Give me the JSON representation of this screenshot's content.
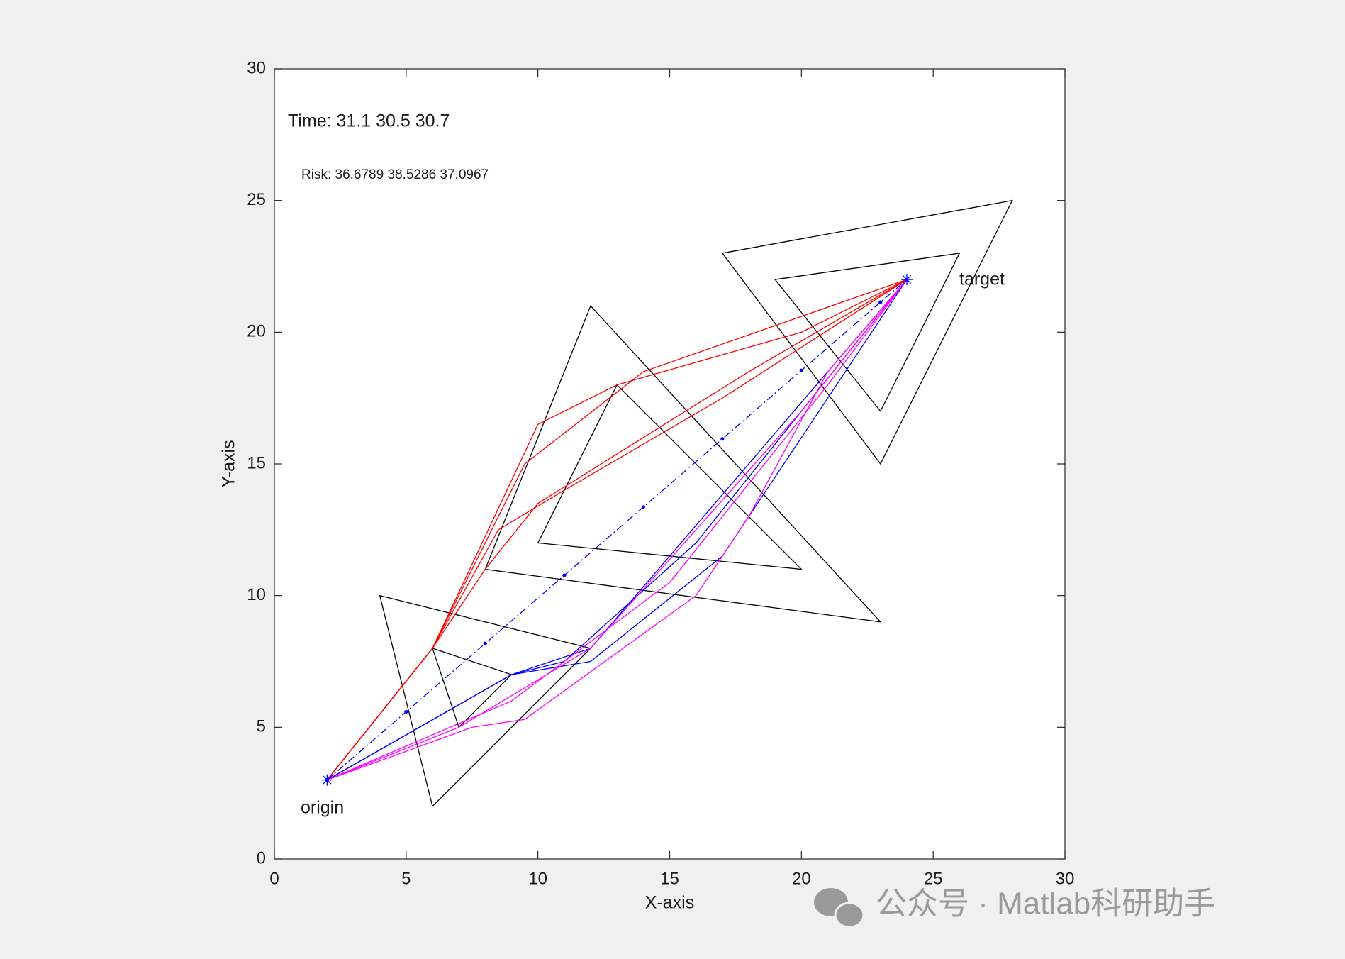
{
  "chart_data": {
    "type": "line",
    "xlabel": "X-axis",
    "ylabel": "Y-axis",
    "xlim": [
      0,
      30
    ],
    "ylim": [
      0,
      30
    ],
    "xticks": [
      0,
      5,
      10,
      15,
      20,
      25,
      30
    ],
    "yticks": [
      0,
      5,
      10,
      15,
      20,
      25,
      30
    ],
    "box": true,
    "annotations": {
      "time": "Time:  31.1 30.5 30.7",
      "risk": "Risk:    36.6789  38.5286  37.0967",
      "origin": "origin",
      "target": "target"
    },
    "watermark": "公众号 · Matlab科研助手",
    "series": [
      {
        "color": "#000000",
        "closed": true,
        "x": [
          4,
          6,
          12
        ],
        "values": [
          10,
          2,
          8
        ]
      },
      {
        "color": "#000000",
        "closed": true,
        "x": [
          6,
          7,
          9
        ],
        "values": [
          8,
          5,
          7
        ]
      },
      {
        "color": "#000000",
        "closed": true,
        "x": [
          12,
          8,
          23
        ],
        "values": [
          21,
          11,
          9
        ]
      },
      {
        "color": "#000000",
        "closed": true,
        "x": [
          13,
          10,
          20
        ],
        "values": [
          18,
          12,
          11
        ]
      },
      {
        "color": "#000000",
        "closed": true,
        "x": [
          17,
          28,
          23
        ],
        "values": [
          23,
          25,
          15
        ]
      },
      {
        "color": "#000000",
        "closed": true,
        "x": [
          19,
          26,
          23
        ],
        "values": [
          22,
          23,
          17
        ]
      },
      {
        "color": "#ff0000",
        "x": [
          2,
          6,
          10,
          13,
          20,
          24
        ],
        "values": [
          3,
          8,
          16.5,
          18,
          20,
          22
        ]
      },
      {
        "color": "#ff0000",
        "x": [
          2,
          6,
          9.5,
          14,
          24
        ],
        "values": [
          3,
          8,
          15,
          18.5,
          22
        ]
      },
      {
        "color": "#ff0000",
        "x": [
          2,
          6,
          8.5,
          11,
          17,
          24
        ],
        "values": [
          3,
          8,
          12.5,
          14,
          17.5,
          22
        ]
      },
      {
        "color": "#ff0000",
        "x": [
          2,
          6,
          8,
          10,
          18,
          24
        ],
        "values": [
          3,
          8,
          11,
          13.5,
          18.5,
          22
        ]
      },
      {
        "color": "#0000ff",
        "x": [
          2,
          9,
          12,
          21,
          24
        ],
        "values": [
          3,
          7,
          8,
          18.5,
          22
        ]
      },
      {
        "color": "#0000ff",
        "x": [
          2,
          9,
          11,
          16,
          24
        ],
        "values": [
          3,
          7,
          7.5,
          12,
          22
        ]
      },
      {
        "color": "#0000ff",
        "x": [
          2,
          9,
          12,
          17,
          24
        ],
        "values": [
          3,
          7,
          7.5,
          11.5,
          22
        ]
      },
      {
        "color": "#ff00ff",
        "x": [
          2,
          7.5,
          9.5,
          16,
          18,
          21,
          24
        ],
        "values": [
          3,
          5,
          5.3,
          10,
          13,
          18.5,
          22
        ]
      },
      {
        "color": "#ff00ff",
        "x": [
          2,
          7,
          12,
          20,
          24
        ],
        "values": [
          3,
          5,
          8,
          17,
          22
        ]
      },
      {
        "color": "#ff00ff",
        "x": [
          2,
          9,
          15,
          21,
          24
        ],
        "values": [
          3,
          6,
          10.5,
          18,
          22
        ]
      },
      {
        "color": "#0000ff",
        "style": "dashdot",
        "marker": ".",
        "x": [
          2,
          5,
          8,
          11,
          14,
          17,
          20,
          23,
          24
        ],
        "values": [
          3,
          5.59,
          8.18,
          10.77,
          13.36,
          15.95,
          18.55,
          21.14,
          22
        ]
      },
      {
        "color": "#0000ff",
        "marker": "*",
        "x": [
          2
        ],
        "values": [
          3
        ]
      },
      {
        "color": "#0000ff",
        "marker": "*",
        "x": [
          24
        ],
        "values": [
          22
        ]
      }
    ]
  }
}
